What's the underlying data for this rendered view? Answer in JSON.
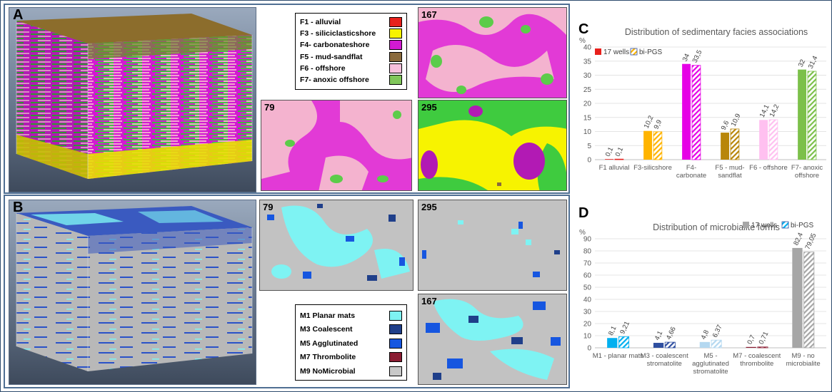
{
  "panels": {
    "a": {
      "letter": "A"
    },
    "b": {
      "letter": "B"
    },
    "c": {
      "letter": "C"
    },
    "d": {
      "letter": "D"
    }
  },
  "maps": {
    "a_top": {
      "label": "167"
    },
    "a_mid": {
      "label": "79"
    },
    "a_br": {
      "label": "295"
    },
    "b_top_left": {
      "label": "79"
    },
    "b_top_right": {
      "label": "295"
    },
    "b_bottom": {
      "label": "167"
    }
  },
  "legend_facies": [
    {
      "label": "F1 - alluvial",
      "color": "#e8201c"
    },
    {
      "label": "F3 - siliciclasticshore",
      "color": "#f7f300"
    },
    {
      "label": "F4- carbonateshore",
      "color": "#d21ad2"
    },
    {
      "label": "F5 - mud-sandflat",
      "color": "#8a6a3c"
    },
    {
      "label": "F6 - offshore",
      "color": "#f7c0dc"
    },
    {
      "label": "F7- anoxic offshore",
      "color": "#80c65a"
    }
  ],
  "legend_microbial": [
    {
      "label": "M1 Planar mats",
      "color": "#7ef3f3"
    },
    {
      "label": "M3 Coalescent",
      "color": "#1f3f8a"
    },
    {
      "label": "M5 Agglutinated",
      "color": "#1656e0"
    },
    {
      "label": "M7 Thrombolite",
      "color": "#8b1c32"
    },
    {
      "label": "M9 NoMicrobial",
      "color": "#c8c8c8"
    }
  ],
  "chart_data": [
    {
      "type": "bar",
      "title": "Distribution of sedimentary facies associations",
      "ylabel": "%",
      "ylim": [
        0,
        40
      ],
      "yticks": [
        "0",
        "5",
        "10",
        "15",
        "20",
        "25",
        "30",
        "35",
        "40"
      ],
      "legend": {
        "placement": "top-left",
        "items": [
          "17 wells",
          "bi-PGS"
        ]
      },
      "categories": [
        [
          "F1 alluvial"
        ],
        [
          "F3-silicshore"
        ],
        [
          "F4-",
          "carbonate"
        ],
        [
          "F5 - mud-",
          "sandflat"
        ],
        [
          "F6 - offshore"
        ],
        [
          "F7- anoxic",
          "offshore"
        ]
      ],
      "series": [
        {
          "name": "17 wells",
          "values": [
            0.1,
            10.2,
            34,
            9.6,
            14.1,
            32
          ],
          "labels": [
            "0,1",
            "10,2",
            "34",
            "9,6",
            "14,1",
            "32"
          ]
        },
        {
          "name": "bi-PGS",
          "values": [
            0.1,
            9.9,
            33.5,
            10.9,
            14.2,
            31.4
          ],
          "labels": [
            "0,1",
            "9,9",
            "33,5",
            "10,9",
            "14,2",
            "31,4"
          ]
        }
      ],
      "colors": [
        "#e8201c",
        "#ffb400",
        "#e600e6",
        "#b8860b",
        "#ffc0f0",
        "#7cc04a"
      ]
    },
    {
      "type": "bar",
      "title": "Distribution of microbialite forms",
      "ylabel": "%",
      "ylim": [
        0,
        90
      ],
      "yticks": [
        "0",
        "10",
        "20",
        "30",
        "40",
        "50",
        "60",
        "70",
        "80",
        "90"
      ],
      "legend": {
        "placement": "top-right",
        "items": [
          "17 wells",
          "bi-PGS"
        ]
      },
      "categories": [
        [
          "M1 - planar mats"
        ],
        [
          "M3 - coalescent",
          "stromatolite"
        ],
        [
          "M5 -",
          "agglutinated",
          "stromatolite"
        ],
        [
          "M7 - coalescent",
          "thrombolite"
        ],
        [
          "M9 - no",
          "microbialite"
        ]
      ],
      "series": [
        {
          "name": "17 wells",
          "values": [
            8.1,
            4.1,
            4.8,
            0.7,
            82.4
          ],
          "labels": [
            "8,1",
            "4,1",
            "4,8",
            "0,7",
            "82,4"
          ]
        },
        {
          "name": "bi-PGS",
          "values": [
            9.21,
            4.66,
            6.37,
            0.71,
            79.05
          ],
          "labels": [
            "9,21",
            "4,66",
            "6,37",
            "0,71",
            "79,05"
          ]
        }
      ],
      "colors": [
        "#00b0f0",
        "#2f4fa0",
        "#b4d8f0",
        "#8b1c32",
        "#a6a6a6"
      ]
    }
  ]
}
